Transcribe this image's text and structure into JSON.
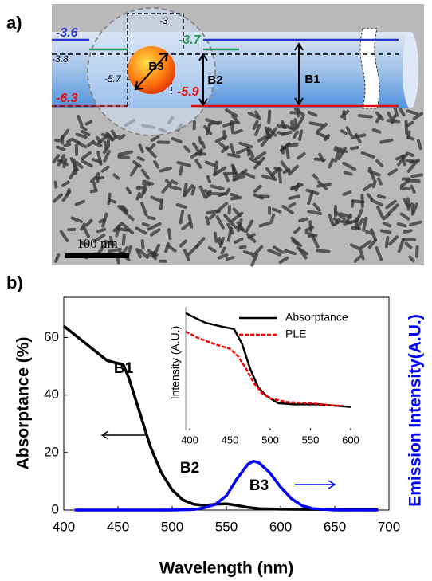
{
  "panel_labels": [
    "a)",
    "b)"
  ],
  "panel_a": {
    "levels": [
      "-3.6",
      "-3.8",
      "-6.3",
      "-3",
      "-3.7",
      "-5.7",
      "-5.9"
    ],
    "bands": [
      "B3",
      "B2",
      "B1"
    ],
    "scale_bar": "100 nm"
  },
  "chart_data": [
    {
      "type": "line",
      "x_label": "Wavelength (nm)",
      "y_label": "Absorptance (%)",
      "y2_label": "Emission Intensity(A.U.)",
      "xlim": [
        400,
        700
      ],
      "xticks": [
        400,
        450,
        500,
        550,
        600,
        650,
        700
      ],
      "ylim": [
        0,
        74
      ],
      "yticks": [
        0,
        20,
        40,
        60
      ],
      "annotations": [
        "B1",
        "B2",
        "B3"
      ],
      "series": [
        {
          "color": "#000000",
          "x": [
            400,
            410,
            420,
            430,
            440,
            450,
            455,
            460,
            465,
            470,
            475,
            480,
            490,
            500,
            510,
            520,
            530,
            540,
            550,
            560,
            570,
            580,
            600,
            650,
            690
          ],
          "values": [
            64,
            61,
            58,
            55,
            52,
            51,
            50.5,
            46,
            40,
            34,
            28,
            22,
            13,
            7,
            3.5,
            2,
            1.6,
            2,
            2.2,
            1.6,
            0.9,
            0.5,
            0.3,
            0.2,
            0.2
          ]
        },
        {
          "color": "#0000ff",
          "x": [
            410,
            500,
            520,
            530,
            540,
            550,
            560,
            570,
            575,
            580,
            590,
            600,
            610,
            620,
            630,
            650,
            690
          ],
          "values": [
            0,
            0,
            0.2,
            0.8,
            2,
            5,
            11,
            16,
            17,
            16.5,
            13,
            8,
            4,
            1.5,
            0.5,
            0,
            0
          ]
        }
      ]
    },
    {
      "type": "line",
      "y_label": "Intensity (A.U.)",
      "xlim": [
        395,
        605
      ],
      "xticks": [
        400,
        450,
        500,
        550,
        600
      ],
      "ylim": [
        0,
        1
      ],
      "legend": true,
      "series": [
        {
          "name": "Absorptance",
          "color": "#000000",
          "dash": false,
          "x": [
            395,
            410,
            420,
            440,
            455,
            465,
            475,
            485,
            495,
            510,
            530,
            560,
            580,
            600
          ],
          "values": [
            0.95,
            0.9,
            0.87,
            0.84,
            0.82,
            0.7,
            0.5,
            0.35,
            0.28,
            0.22,
            0.21,
            0.21,
            0.2,
            0.19
          ]
        },
        {
          "name": "PLE",
          "color": "#ff0000",
          "dash": true,
          "x": [
            395,
            410,
            430,
            450,
            460,
            470,
            480,
            490,
            500,
            520,
            550,
            580,
            590
          ],
          "values": [
            0.8,
            0.75,
            0.7,
            0.66,
            0.6,
            0.5,
            0.38,
            0.3,
            0.26,
            0.23,
            0.22,
            0.2,
            0.2
          ]
        }
      ]
    }
  ]
}
